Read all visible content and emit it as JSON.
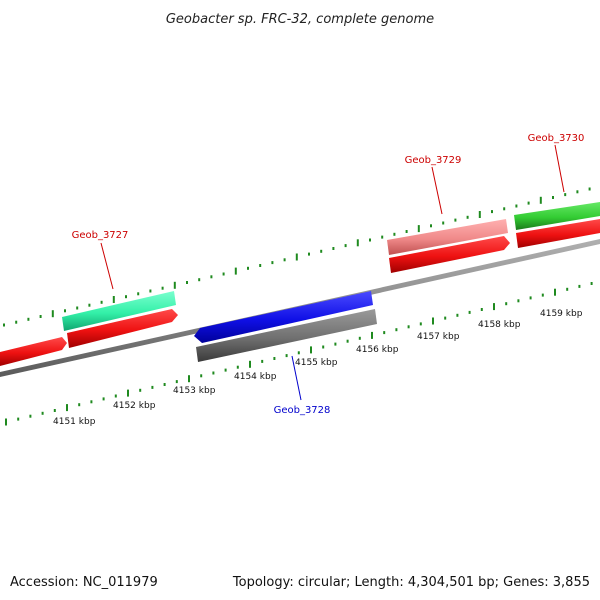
{
  "title": "Geobacter sp. FRC-32, complete genome",
  "footer": {
    "accession": "Accession: NC_011979",
    "topology": "Topology: circular; Length: 4,304,501 bp; Genes: 3,855"
  },
  "colors": {
    "backbone": "#8a8a8a",
    "tick": "#1f8a1f",
    "label_red": "#cc0000",
    "label_blue": "#0000cc"
  },
  "kbp_labels": [
    "4151 kbp",
    "4152 kbp",
    "4153 kbp",
    "4154 kbp",
    "4155 kbp",
    "4156 kbp",
    "4157 kbp",
    "4158 kbp",
    "4159 kbp"
  ],
  "gene_labels": [
    {
      "text": "Geob_3727",
      "color": "#cc0000"
    },
    {
      "text": "Geob_3728",
      "color": "#0000cc"
    },
    {
      "text": "Geob_3729",
      "color": "#cc0000"
    },
    {
      "text": "Geob_3730",
      "color": "#cc0000"
    }
  ],
  "features": [
    {
      "id": "cds-left-edge",
      "color": "#ee1111",
      "dark": "#a00000"
    },
    {
      "id": "gene-3727",
      "color": "#33f0a8",
      "dark": "#0fa670"
    },
    {
      "id": "cds-3727",
      "color": "#ee1111",
      "dark": "#a00000"
    },
    {
      "id": "cds-3728",
      "color": "#1010e6",
      "dark": "#00009a"
    },
    {
      "id": "gene-3728",
      "color": "#707070",
      "dark": "#3a3a3a"
    },
    {
      "id": "gene-3729",
      "color": "#f08a8a",
      "dark": "#c05050"
    },
    {
      "id": "cds-3729",
      "color": "#ee1111",
      "dark": "#a00000"
    },
    {
      "id": "gene-3730",
      "color": "#33cc33",
      "dark": "#1a7a1a"
    },
    {
      "id": "cds-3730",
      "color": "#ee1111",
      "dark": "#a00000"
    }
  ]
}
